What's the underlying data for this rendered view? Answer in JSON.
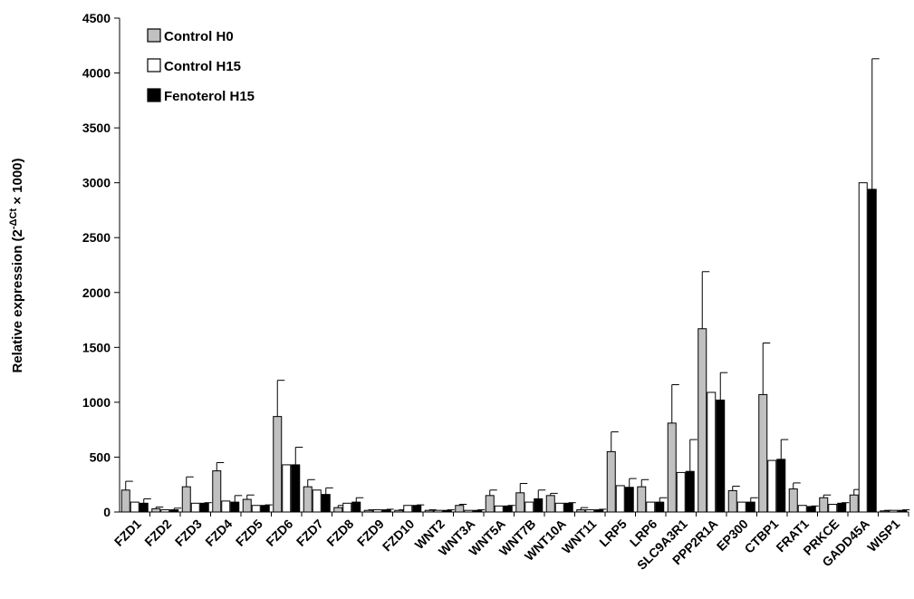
{
  "chart_data": {
    "type": "bar",
    "ylabel_parts": [
      "Relative expression (2",
      "-ΔCt",
      " × 1000)"
    ],
    "ylim": [
      0,
      4500
    ],
    "yticks": [
      0,
      500,
      1000,
      1500,
      2000,
      2500,
      3000,
      3500,
      4000,
      4500
    ],
    "categories": [
      "FZD1",
      "FZD2",
      "FZD3",
      "FZD4",
      "FZD5",
      "FZD6",
      "FZD7",
      "FZD8",
      "FZD9",
      "FZD10",
      "WNT2",
      "WNT3A",
      "WNT5A",
      "WNT7B",
      "WNT10A",
      "WNT11",
      "LRP5",
      "LRP6",
      "SLC9A3R1",
      "PPP2R1A",
      "EP300",
      "CTBP1",
      "FRAT1",
      "PRKCE",
      "GADD45A",
      "WISP1"
    ],
    "series": [
      {
        "name": "Control H0",
        "color": "#c0c0c0",
        "values": [
          200,
          30,
          230,
          375,
          115,
          870,
          230,
          40,
          15,
          15,
          15,
          60,
          150,
          175,
          150,
          20,
          550,
          230,
          810,
          1670,
          195,
          1070,
          210,
          130,
          155,
          10
        ],
        "errors": [
          80,
          15,
          90,
          75,
          40,
          330,
          65,
          20,
          5,
          5,
          5,
          10,
          50,
          85,
          20,
          20,
          180,
          65,
          350,
          520,
          40,
          470,
          55,
          25,
          50,
          5
        ]
      },
      {
        "name": "Control H15",
        "color": "#ffffff",
        "values": [
          90,
          20,
          80,
          100,
          60,
          430,
          200,
          80,
          20,
          60,
          15,
          15,
          55,
          90,
          80,
          20,
          240,
          90,
          360,
          1090,
          90,
          470,
          60,
          70,
          3000,
          15
        ]
      },
      {
        "name": "Fenoterol H15",
        "color": "#000000",
        "values": [
          80,
          20,
          80,
          90,
          60,
          430,
          160,
          90,
          20,
          60,
          15,
          15,
          55,
          120,
          80,
          20,
          225,
          90,
          370,
          1020,
          90,
          480,
          50,
          80,
          2940,
          15
        ],
        "errors": [
          40,
          15,
          5,
          60,
          5,
          160,
          60,
          40,
          5,
          5,
          5,
          5,
          5,
          80,
          5,
          5,
          80,
          40,
          290,
          250,
          40,
          180,
          5,
          5,
          1190,
          5
        ]
      }
    ]
  }
}
